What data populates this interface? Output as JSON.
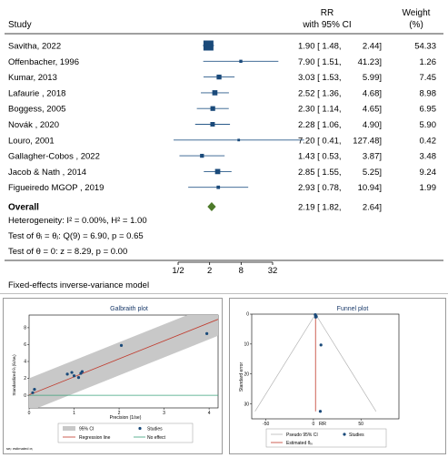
{
  "forest": {
    "header": {
      "study": "Study",
      "rr_line1": "RR",
      "rr_line2": "with 95% CI",
      "weight_line1": "Weight",
      "weight_line2": "(%)"
    },
    "studies": [
      {
        "name": "Savitha, 2022",
        "rr": 1.9,
        "lo": 1.48,
        "hi": 2.44,
        "rr_text": "1.90 [ 1.48,",
        "hi_text": "2.44]",
        "weight": "54.33"
      },
      {
        "name": "Offenbacher, 1996",
        "rr": 7.9,
        "lo": 1.51,
        "hi": 41.23,
        "rr_text": "7.90 [ 1.51,",
        "hi_text": "41.23]",
        "weight": "1.26"
      },
      {
        "name": "Kumar, 2013",
        "rr": 3.03,
        "lo": 1.53,
        "hi": 5.99,
        "rr_text": "3.03 [ 1.53,",
        "hi_text": "5.99]",
        "weight": "7.45"
      },
      {
        "name": "Lafaurie , 2018",
        "rr": 2.52,
        "lo": 1.36,
        "hi": 4.68,
        "rr_text": "2.52 [ 1.36,",
        "hi_text": "4.68]",
        "weight": "8.98"
      },
      {
        "name": "Boggess, 2005",
        "rr": 2.3,
        "lo": 1.14,
        "hi": 4.65,
        "rr_text": "2.30 [ 1.14,",
        "hi_text": "4.65]",
        "weight": "6.95"
      },
      {
        "name": "Novák , 2020",
        "rr": 2.28,
        "lo": 1.06,
        "hi": 4.9,
        "rr_text": "2.28 [ 1.06,",
        "hi_text": "4.90]",
        "weight": "5.90"
      },
      {
        "name": "Louro, 2001",
        "rr": 7.2,
        "lo": 0.41,
        "hi": 127.48,
        "rr_text": "7.20 [ 0.41,",
        "hi_text": "127.48]",
        "weight": "0.42"
      },
      {
        "name": "Gallagher-Cobos , 2022",
        "rr": 1.43,
        "lo": 0.53,
        "hi": 3.87,
        "rr_text": "1.43 [ 0.53,",
        "hi_text": "3.87]",
        "weight": "3.48"
      },
      {
        "name": "Jacob & Nath , 2014",
        "rr": 2.85,
        "lo": 1.55,
        "hi": 5.25,
        "rr_text": "2.85 [ 1.55,",
        "hi_text": "5.25]",
        "weight": "9.24"
      },
      {
        "name": "Figueiredo MGOP , 2019",
        "rr": 2.93,
        "lo": 0.78,
        "hi": 10.94,
        "rr_text": "2.93 [ 0.78,",
        "hi_text": "10.94]",
        "weight": "1.99"
      }
    ],
    "overall": {
      "label": "Overall",
      "rr": 2.19,
      "lo": 1.82,
      "hi": 2.64,
      "rr_text": "2.19 [ 1.82,",
      "hi_text": "2.64]"
    },
    "heterogeneity": "Heterogeneity: I² = 0.00%, H² = 1.00",
    "test_theta_i": "Test of θᵢ = θⱼ: Q(9) = 6.90, p = 0.65",
    "test_theta": "Test of θ = 0: z = 8.29, p = 0.00",
    "axis_ticks": [
      {
        "v": 0.5,
        "label": "1/2"
      },
      {
        "v": 2,
        "label": "2"
      },
      {
        "v": 8,
        "label": "8"
      },
      {
        "v": 32,
        "label": "32"
      }
    ],
    "footnote": "Fixed-effects inverse-variance model",
    "colors": {
      "marker": "#1a4a7a",
      "diamond": "#4d7a2a",
      "ci_line": "#2a5a8a"
    }
  },
  "chart_data": [
    {
      "type": "scatter",
      "title": "Galbraith plot",
      "xlabel": "Precision (1/se)",
      "ylabel": "Standardized θᵢ (θᵢ/seᵢ)",
      "xlim": [
        0,
        4.2
      ],
      "ylim": [
        -1.5,
        9.5
      ],
      "x_ticks": [
        "0",
        "1",
        "2",
        "3",
        "4"
      ],
      "y_ticks": [
        "0",
        "2",
        "4",
        "6",
        "8"
      ],
      "points": [
        {
          "x": 0.08,
          "y": 0.3
        },
        {
          "x": 0.12,
          "y": 0.7
        },
        {
          "x": 0.85,
          "y": 2.5
        },
        {
          "x": 0.95,
          "y": 2.7
        },
        {
          "x": 1.0,
          "y": 2.3
        },
        {
          "x": 1.1,
          "y": 2.1
        },
        {
          "x": 1.15,
          "y": 2.6
        },
        {
          "x": 1.18,
          "y": 2.8
        },
        {
          "x": 2.05,
          "y": 5.9
        },
        {
          "x": 3.95,
          "y": 7.3
        }
      ],
      "regression_line": {
        "x": [
          0,
          4.2
        ],
        "y": [
          0.05,
          9.0
        ]
      },
      "ci_band_halfwidth": 1.96,
      "no_effect_y": 0,
      "legend": [
        "95% CI",
        "Studies",
        "Regression line",
        "No effect"
      ],
      "footnote": "seᵢ: estimated σᵢ",
      "colors": {
        "band": "#c8c8c8",
        "regression": "#c0392b",
        "no_effect": "#3aa07a",
        "points": "#1a4a7a"
      }
    },
    {
      "type": "scatter",
      "title": "Funnel plot",
      "xlabel": "RR",
      "ylabel": "Standard error",
      "xlim": [
        -65,
        90
      ],
      "ylim": [
        0,
        35
      ],
      "x_ticks": [
        "-50",
        "0",
        "50"
      ],
      "y_ticks": [
        "0",
        "10",
        "20",
        "30"
      ],
      "points": [
        {
          "x": 1.9,
          "y": 0.2
        },
        {
          "x": 2.5,
          "y": 0.6
        },
        {
          "x": 3.0,
          "y": 0.8
        },
        {
          "x": 2.3,
          "y": 1.0
        },
        {
          "x": 2.85,
          "y": 0.9
        },
        {
          "x": 7.9,
          "y": 10.3
        },
        {
          "x": 7.2,
          "y": 32.5
        }
      ],
      "estimated_theta": 2.19,
      "funnel_se_max": 32.5,
      "legend": [
        "Pseudo 95% CI",
        "Studies",
        "Estimated θᵢᵥ"
      ],
      "colors": {
        "funnel": "#b5b5b5",
        "estimate": "#c0392b",
        "points": "#1a4a7a"
      }
    }
  ]
}
